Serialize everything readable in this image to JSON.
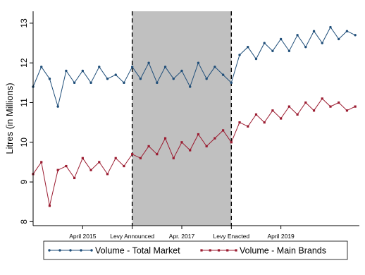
{
  "chart_data": {
    "type": "line",
    "ylabel": "Litres (in Millions)",
    "ylim": [
      7.9,
      13.3
    ],
    "x_range": [
      "2014-04",
      "2020-11"
    ],
    "grid": false,
    "legend_position": "bottom",
    "y_ticks": [
      8,
      9,
      10,
      11,
      12,
      13
    ],
    "x_ticks": [
      {
        "date": "2015-04",
        "label": "April 2015"
      },
      {
        "date": "2016-04",
        "label": "Levy Announced"
      },
      {
        "date": "2017-04",
        "label": "Apr. 2017"
      },
      {
        "date": "2018-04",
        "label": "Levy Enacted"
      },
      {
        "date": "2019-04",
        "label": "April 2019"
      }
    ],
    "shaded_period": {
      "start": "2016-04",
      "end": "2018-04",
      "color": "#c0c0c0"
    },
    "vertical_lines": [
      "2016-04",
      "2018-04"
    ],
    "series": [
      {
        "name": "Volume - Total Market",
        "color": "#1f4e79",
        "marker": "circle",
        "points": [
          [
            "2014-04",
            11.4
          ],
          [
            "2014-06",
            11.9
          ],
          [
            "2014-08",
            11.6
          ],
          [
            "2014-10",
            10.9
          ],
          [
            "2014-12",
            11.8
          ],
          [
            "2015-02",
            11.5
          ],
          [
            "2015-04",
            11.8
          ],
          [
            "2015-06",
            11.5
          ],
          [
            "2015-08",
            11.9
          ],
          [
            "2015-10",
            11.6
          ],
          [
            "2015-12",
            11.7
          ],
          [
            "2016-02",
            11.5
          ],
          [
            "2016-04",
            11.9
          ],
          [
            "2016-06",
            11.6
          ],
          [
            "2016-08",
            12.0
          ],
          [
            "2016-10",
            11.5
          ],
          [
            "2016-12",
            11.9
          ],
          [
            "2017-02",
            11.6
          ],
          [
            "2017-04",
            11.8
          ],
          [
            "2017-06",
            11.4
          ],
          [
            "2017-08",
            12.0
          ],
          [
            "2017-10",
            11.6
          ],
          [
            "2017-12",
            11.9
          ],
          [
            "2018-02",
            11.7
          ],
          [
            "2018-04",
            11.5
          ],
          [
            "2018-06",
            12.2
          ],
          [
            "2018-08",
            12.4
          ],
          [
            "2018-10",
            12.1
          ],
          [
            "2018-12",
            12.5
          ],
          [
            "2019-02",
            12.3
          ],
          [
            "2019-04",
            12.6
          ],
          [
            "2019-06",
            12.3
          ],
          [
            "2019-08",
            12.7
          ],
          [
            "2019-10",
            12.4
          ],
          [
            "2019-12",
            12.8
          ],
          [
            "2020-02",
            12.5
          ],
          [
            "2020-04",
            12.9
          ],
          [
            "2020-06",
            12.6
          ],
          [
            "2020-08",
            12.8
          ],
          [
            "2020-10",
            12.7
          ]
        ]
      },
      {
        "name": "Volume - Main Brands",
        "color": "#9b1b30",
        "marker": "square",
        "points": [
          [
            "2014-04",
            9.2
          ],
          [
            "2014-06",
            9.5
          ],
          [
            "2014-08",
            8.4
          ],
          [
            "2014-10",
            9.3
          ],
          [
            "2014-12",
            9.4
          ],
          [
            "2015-02",
            9.1
          ],
          [
            "2015-04",
            9.6
          ],
          [
            "2015-06",
            9.3
          ],
          [
            "2015-08",
            9.5
          ],
          [
            "2015-10",
            9.2
          ],
          [
            "2015-12",
            9.6
          ],
          [
            "2016-02",
            9.4
          ],
          [
            "2016-04",
            9.7
          ],
          [
            "2016-06",
            9.6
          ],
          [
            "2016-08",
            9.9
          ],
          [
            "2016-10",
            9.7
          ],
          [
            "2016-12",
            10.1
          ],
          [
            "2017-02",
            9.6
          ],
          [
            "2017-04",
            10.0
          ],
          [
            "2017-06",
            9.8
          ],
          [
            "2017-08",
            10.2
          ],
          [
            "2017-10",
            9.9
          ],
          [
            "2017-12",
            10.1
          ],
          [
            "2018-02",
            10.3
          ],
          [
            "2018-04",
            10.0
          ],
          [
            "2018-06",
            10.5
          ],
          [
            "2018-08",
            10.4
          ],
          [
            "2018-10",
            10.7
          ],
          [
            "2018-12",
            10.5
          ],
          [
            "2019-02",
            10.8
          ],
          [
            "2019-04",
            10.6
          ],
          [
            "2019-06",
            10.9
          ],
          [
            "2019-08",
            10.7
          ],
          [
            "2019-10",
            11.0
          ],
          [
            "2019-12",
            10.8
          ],
          [
            "2020-02",
            11.1
          ],
          [
            "2020-04",
            10.9
          ],
          [
            "2020-06",
            11.0
          ],
          [
            "2020-08",
            10.8
          ],
          [
            "2020-10",
            10.9
          ]
        ]
      }
    ]
  }
}
